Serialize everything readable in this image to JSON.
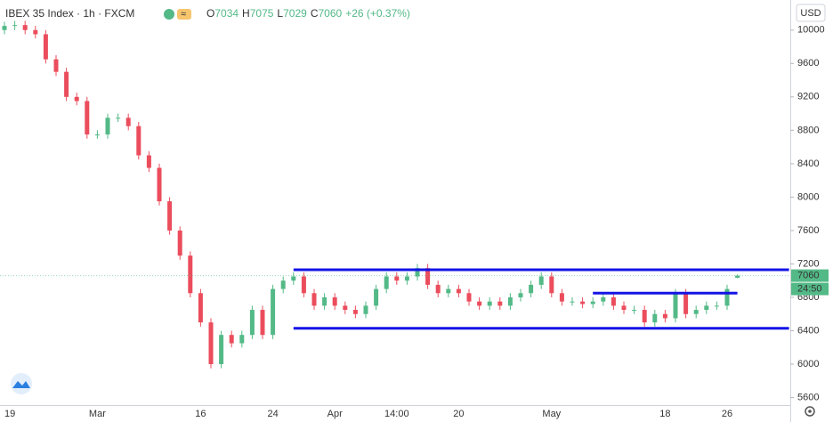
{
  "chart_data": {
    "type": "candlestick",
    "symbol": "IBEX 35 Index · 1h · FXCM",
    "ohlc_labels": [
      "O",
      "H",
      "L",
      "C"
    ],
    "last_ohlc": [
      7034,
      7075,
      7029,
      7060
    ],
    "change_label": "+26 (+0.37%)",
    "currency": "USD",
    "countdown": "24:50",
    "up_color": "#53b987",
    "down_color": "#eb4d5c",
    "line_color": "#1414e6",
    "categories": [
      "19",
      null,
      null,
      null,
      null,
      null,
      null,
      null,
      null,
      "Mar",
      null,
      null,
      null,
      null,
      null,
      null,
      null,
      null,
      null,
      "16",
      null,
      null,
      null,
      null,
      null,
      null,
      "24",
      null,
      null,
      null,
      null,
      null,
      "Apr",
      null,
      null,
      null,
      null,
      null,
      "14:00",
      null,
      null,
      null,
      null,
      null,
      "20",
      null,
      null,
      null,
      null,
      null,
      null,
      null,
      null,
      "May",
      null,
      null,
      null,
      null,
      null,
      null,
      null,
      null,
      null,
      null,
      "18",
      null,
      null,
      null,
      null,
      null,
      "26",
      null
    ],
    "open": [
      10000,
      10050,
      10060,
      10000,
      9950,
      9650,
      9500,
      9200,
      9150,
      8750,
      8750,
      8950,
      8950,
      8850,
      8500,
      8350,
      7950,
      7600,
      7300,
      6850,
      6500,
      6000,
      6350,
      6250,
      6350,
      6650,
      6350,
      6900,
      7000,
      7050,
      6850,
      6700,
      6800,
      6700,
      6650,
      6600,
      6700,
      6900,
      7050,
      7000,
      7050,
      7150,
      6950,
      6850,
      6900,
      6850,
      6750,
      6700,
      6750,
      6700,
      6800,
      6850,
      6950,
      7050,
      6850,
      6750,
      6750,
      6720,
      6750,
      6800,
      6700,
      6650,
      6650,
      6500,
      6600,
      6550,
      6850,
      6600,
      6650,
      6700,
      6700,
      7034
    ],
    "high": [
      10100,
      10110,
      10110,
      10050,
      10000,
      9700,
      9550,
      9250,
      9200,
      8800,
      9000,
      9000,
      9000,
      8900,
      8550,
      8400,
      8000,
      7650,
      7350,
      6900,
      6550,
      6400,
      6400,
      6400,
      6700,
      6700,
      6950,
      7050,
      7100,
      7100,
      6900,
      6850,
      6850,
      6750,
      6700,
      6750,
      6950,
      7100,
      7100,
      7100,
      7200,
      7200,
      7000,
      6950,
      6950,
      6900,
      6800,
      6800,
      6800,
      6850,
      6900,
      7000,
      7100,
      7100,
      6900,
      6800,
      6800,
      6800,
      6850,
      6850,
      6750,
      6700,
      6700,
      6650,
      6650,
      6900,
      6900,
      6700,
      6750,
      6750,
      6950,
      7075
    ],
    "low": [
      9950,
      10000,
      9950,
      9900,
      9600,
      9450,
      9150,
      9100,
      8700,
      8700,
      8700,
      8900,
      8800,
      8450,
      8300,
      7900,
      7550,
      7250,
      6800,
      6450,
      5950,
      5950,
      6200,
      6200,
      6300,
      6300,
      6300,
      6850,
      6950,
      6800,
      6650,
      6650,
      6650,
      6600,
      6550,
      6550,
      6650,
      6850,
      6950,
      6950,
      7000,
      6900,
      6800,
      6800,
      6800,
      6700,
      6650,
      6650,
      6650,
      6650,
      6750,
      6800,
      6900,
      6800,
      6700,
      6700,
      6670,
      6670,
      6700,
      6650,
      6600,
      6600,
      6450,
      6450,
      6500,
      6500,
      6550,
      6550,
      6600,
      6650,
      6650,
      7029
    ],
    "close": [
      10050,
      10060,
      10000,
      9950,
      9650,
      9500,
      9200,
      9150,
      8750,
      8750,
      8950,
      8950,
      8850,
      8500,
      8350,
      7950,
      7600,
      7300,
      6850,
      6500,
      6000,
      6350,
      6250,
      6350,
      6650,
      6350,
      6900,
      7000,
      7050,
      6850,
      6700,
      6800,
      6700,
      6650,
      6600,
      6700,
      6900,
      7050,
      7000,
      7050,
      7150,
      6950,
      6850,
      6900,
      6850,
      6750,
      6700,
      6750,
      6700,
      6800,
      6850,
      6950,
      7050,
      6850,
      6750,
      6750,
      6720,
      6750,
      6800,
      6700,
      6650,
      6650,
      6500,
      6600,
      6550,
      6850,
      6600,
      6650,
      6700,
      6700,
      6900,
      7060
    ],
    "hlines": [
      {
        "value": 7130,
        "from": 28,
        "to": 76
      },
      {
        "value": 6850,
        "from": 57,
        "to": 71
      },
      {
        "value": 6430,
        "from": 28,
        "to": 76
      }
    ],
    "ylim": [
      5510,
      10360
    ],
    "yticks": [
      5600,
      6000,
      6400,
      6800,
      7200,
      7600,
      8000,
      8400,
      8800,
      9200,
      9600,
      10000
    ],
    "grid": false
  }
}
